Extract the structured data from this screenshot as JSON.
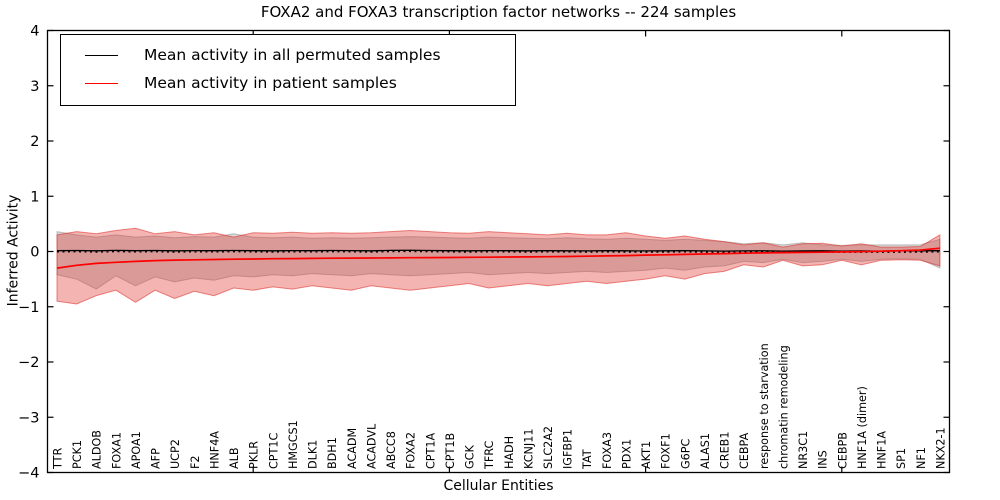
{
  "figure": {
    "background": "#ffffff"
  },
  "chart_data": {
    "type": "line",
    "title": "FOXA2 and FOXA3 transcription factor networks -- 224 samples",
    "xlabel": "Cellular Entities",
    "ylabel": "Inferred Activity",
    "ylim": [
      -4,
      4
    ],
    "yticks": [
      "4",
      "3",
      "2",
      "1",
      "0",
      "−1",
      "−2",
      "−3",
      "−4"
    ],
    "ytick_values": [
      4,
      3,
      2,
      1,
      0,
      -1,
      -2,
      -3,
      -4
    ],
    "grid": false,
    "legend_position": "upper left",
    "categories": [
      "TTR",
      "PCK1",
      "ALDOB",
      "FOXA1",
      "APOA1",
      "AFP",
      "UCP2",
      "F2",
      "HNF4A",
      "ALB",
      "PKLR",
      "CPT1C",
      "HMGCS1",
      "DLK1",
      "BDH1",
      "ACADM",
      "ACADVL",
      "ABCC8",
      "FOXA2",
      "CPT1A",
      "CPT1B",
      "GCK",
      "TFRC",
      "HADH",
      "KCNJ11",
      "SLC2A2",
      "IGFBP1",
      "TAT",
      "FOXA3",
      "PDX1",
      "AKT1",
      "FOXF1",
      "G6PC",
      "ALAS1",
      "CREB1",
      "CEBPA",
      "response to starvation",
      "chromatin remodeling",
      "NR3C1",
      "INS",
      "CEBPB",
      "HNF1A (dimer)",
      "HNF1A",
      "SP1",
      "NF1",
      "NKX2-1"
    ],
    "series": [
      {
        "name": "Mean activity in all permuted samples",
        "color": "#000000",
        "band_color": "#828282",
        "values": [
          0.015,
          0.018,
          0.012,
          0.02,
          0.014,
          0.018,
          0.012,
          0.016,
          0.014,
          0.018,
          0.015,
          0.012,
          0.016,
          0.014,
          0.018,
          0.016,
          0.012,
          0.02,
          0.022,
          0.018,
          0.014,
          0.012,
          0.016,
          0.014,
          0.012,
          0.015,
          0.013,
          0.011,
          0.014,
          0.012,
          0.01,
          0.012,
          0.014,
          0.01,
          0.008,
          0.01,
          0.012,
          0.008,
          0.01,
          0.012,
          0.008,
          0.01,
          0.008,
          0.01,
          0.012,
          0.015
        ],
        "band_top": [
          0.36,
          0.3,
          0.26,
          0.3,
          0.26,
          0.28,
          0.25,
          0.27,
          0.26,
          0.32,
          0.26,
          0.25,
          0.26,
          0.24,
          0.25,
          0.24,
          0.25,
          0.26,
          0.27,
          0.26,
          0.25,
          0.24,
          0.26,
          0.25,
          0.24,
          0.23,
          0.25,
          0.23,
          0.22,
          0.24,
          0.22,
          0.2,
          0.22,
          0.2,
          0.18,
          0.14,
          0.16,
          0.12,
          0.16,
          0.12,
          0.11,
          0.12,
          0.12,
          0.12,
          0.12,
          0.22
        ],
        "band_bottom": [
          -0.42,
          -0.5,
          -0.68,
          -0.44,
          -0.62,
          -0.46,
          -0.55,
          -0.48,
          -0.52,
          -0.44,
          -0.46,
          -0.42,
          -0.44,
          -0.4,
          -0.42,
          -0.44,
          -0.4,
          -0.42,
          -0.44,
          -0.42,
          -0.4,
          -0.38,
          -0.42,
          -0.4,
          -0.38,
          -0.4,
          -0.38,
          -0.36,
          -0.38,
          -0.36,
          -0.34,
          -0.3,
          -0.34,
          -0.28,
          -0.26,
          -0.18,
          -0.2,
          -0.14,
          -0.2,
          -0.18,
          -0.14,
          -0.18,
          -0.14,
          -0.13,
          -0.14,
          -0.3
        ]
      },
      {
        "name": "Mean activity in patient samples",
        "color": "#ff0000",
        "band_color": "#dc2823",
        "values": [
          -0.3,
          -0.25,
          -0.215,
          -0.195,
          -0.18,
          -0.165,
          -0.155,
          -0.15,
          -0.145,
          -0.14,
          -0.135,
          -0.13,
          -0.128,
          -0.125,
          -0.122,
          -0.12,
          -0.118,
          -0.115,
          -0.112,
          -0.11,
          -0.108,
          -0.105,
          -0.103,
          -0.1,
          -0.098,
          -0.094,
          -0.09,
          -0.085,
          -0.08,
          -0.074,
          -0.066,
          -0.06,
          -0.052,
          -0.045,
          -0.038,
          -0.03,
          -0.026,
          -0.02,
          -0.016,
          -0.012,
          -0.008,
          -0.002,
          0.006,
          0.015,
          0.025,
          0.06
        ],
        "band_top": [
          0.3,
          0.36,
          0.32,
          0.38,
          0.42,
          0.32,
          0.36,
          0.3,
          0.34,
          0.26,
          0.34,
          0.33,
          0.35,
          0.33,
          0.34,
          0.33,
          0.34,
          0.36,
          0.38,
          0.36,
          0.34,
          0.33,
          0.36,
          0.34,
          0.32,
          0.3,
          0.33,
          0.3,
          0.3,
          0.34,
          0.28,
          0.24,
          0.28,
          0.22,
          0.18,
          0.12,
          0.16,
          0.08,
          0.14,
          0.15,
          0.1,
          0.14,
          0.08,
          0.08,
          0.09,
          0.3
        ],
        "band_bottom": [
          -0.9,
          -0.95,
          -0.8,
          -0.7,
          -0.92,
          -0.7,
          -0.85,
          -0.72,
          -0.8,
          -0.66,
          -0.7,
          -0.64,
          -0.68,
          -0.62,
          -0.66,
          -0.7,
          -0.62,
          -0.66,
          -0.7,
          -0.66,
          -0.62,
          -0.58,
          -0.66,
          -0.62,
          -0.58,
          -0.62,
          -0.58,
          -0.54,
          -0.58,
          -0.54,
          -0.5,
          -0.44,
          -0.5,
          -0.4,
          -0.36,
          -0.24,
          -0.28,
          -0.16,
          -0.26,
          -0.24,
          -0.16,
          -0.24,
          -0.16,
          -0.15,
          -0.16,
          -0.26
        ]
      }
    ]
  }
}
